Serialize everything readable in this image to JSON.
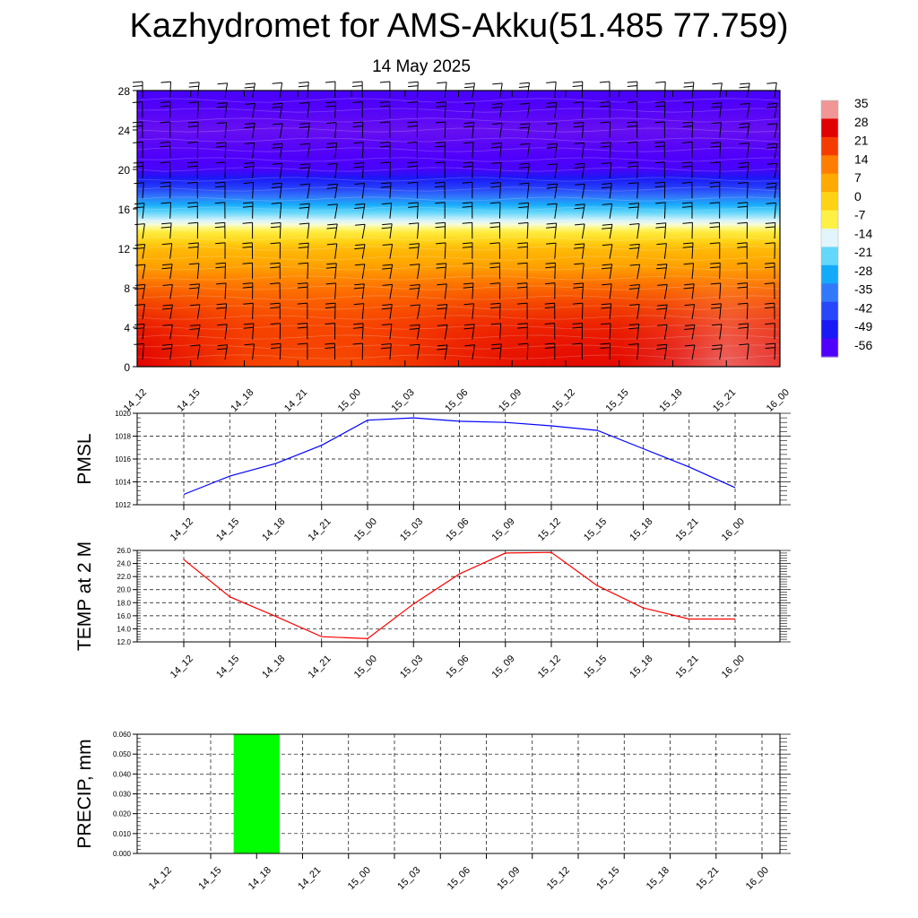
{
  "title": "Kazhydromet for AMS-Akku(51.485 77.759)",
  "subtitle": "14 May 2025",
  "time_labels": [
    "14_12",
    "14_15",
    "14_18",
    "14_21",
    "15_00",
    "15_03",
    "15_06",
    "15_09",
    "15_12",
    "15_15",
    "15_18",
    "15_21",
    "16_00"
  ],
  "chart_data": [
    {
      "type": "heatmap",
      "title": "",
      "x": [
        "14_12",
        "14_15",
        "14_18",
        "14_21",
        "15_00",
        "15_03",
        "15_06",
        "15_09",
        "15_12",
        "15_15",
        "15_18",
        "15_21",
        "16_00"
      ],
      "yticks": [
        0,
        4,
        8,
        12,
        16,
        20,
        24,
        28
      ],
      "ylim": [
        0,
        28
      ],
      "grid": false,
      "legend": "right",
      "colorbar_labels": [
        "35",
        "28",
        "21",
        "14",
        "7",
        "0",
        "-7",
        "-14",
        "-21",
        "-28",
        "-35",
        "-42",
        "-49",
        "-56"
      ],
      "profile_levels": [
        0,
        4,
        8,
        12,
        14,
        16,
        18,
        20,
        24,
        28
      ],
      "profile_values": [
        25,
        21,
        14,
        4,
        -8,
        -24,
        -42,
        -55,
        -58,
        -55
      ],
      "surface_values": [
        28,
        24,
        20,
        19,
        19,
        21,
        24,
        26,
        27,
        27,
        30,
        33,
        31
      ],
      "wind_barbs": true
    },
    {
      "type": "line",
      "ylabel": "PMSL",
      "x": [
        "14_12",
        "14_15",
        "14_18",
        "14_21",
        "15_00",
        "15_03",
        "15_06",
        "15_09",
        "15_12",
        "15_15",
        "15_18",
        "15_21",
        "16_00"
      ],
      "yticks": [
        "1012",
        "1014",
        "1016",
        "1018",
        "1020"
      ],
      "ylim": [
        1012,
        1020
      ],
      "grid": true,
      "series": [
        {
          "values": [
            1012.9,
            1014.5,
            1015.6,
            1017.2,
            1019.4,
            1019.6,
            1019.3,
            1019.2,
            1018.9,
            1018.5,
            1016.9,
            1015.3,
            1013.5
          ],
          "color": "#0000ff"
        }
      ]
    },
    {
      "type": "line",
      "ylabel": "TEMP at 2 M",
      "x": [
        "14_12",
        "14_15",
        "14_18",
        "14_21",
        "15_00",
        "15_03",
        "15_06",
        "15_09",
        "15_12",
        "15_15",
        "15_18",
        "15_21",
        "16_00"
      ],
      "yticks": [
        "12.0",
        "14.0",
        "16.0",
        "18.0",
        "20.0",
        "22.0",
        "24.0",
        "26.0"
      ],
      "ylim": [
        12,
        26
      ],
      "grid": true,
      "series": [
        {
          "values": [
            24.6,
            18.9,
            15.9,
            12.8,
            12.5,
            17.8,
            22.4,
            25.6,
            25.7,
            20.6,
            17.2,
            15.5,
            15.5
          ],
          "color": "#ff0000"
        }
      ]
    },
    {
      "type": "bar",
      "ylabel": "PRECIP, mm",
      "x": [
        "14_12",
        "14_15",
        "14_18",
        "14_21",
        "15_00",
        "15_03",
        "15_06",
        "15_09",
        "15_12",
        "15_15",
        "15_18",
        "15_21",
        "16_00"
      ],
      "yticks": [
        "0.000",
        "0.010",
        "0.020",
        "0.030",
        "0.040",
        "0.050",
        "0.060"
      ],
      "ylim": [
        0,
        0.06
      ],
      "grid": true,
      "series": [
        {
          "values": [
            0,
            0.06,
            0,
            0,
            0,
            0,
            0,
            0,
            0,
            0,
            0,
            0,
            0
          ],
          "color": "#00ff00"
        }
      ]
    }
  ]
}
